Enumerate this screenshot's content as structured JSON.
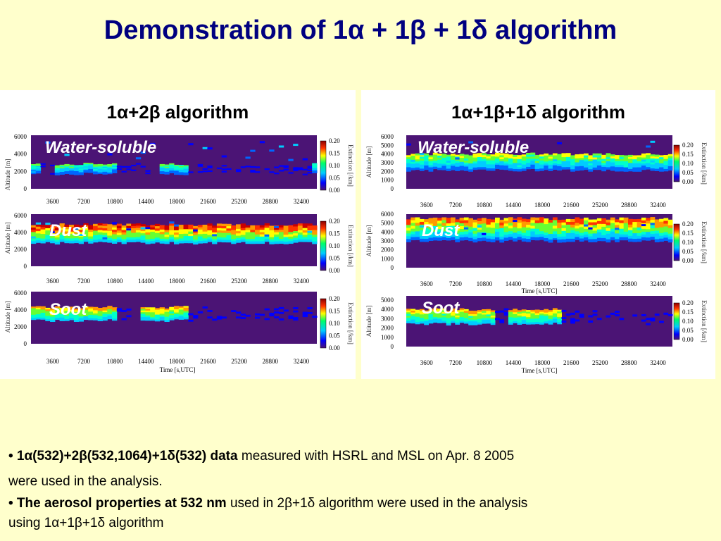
{
  "title": "Demonstration of 1α + 1β + 1δ algorithm",
  "left_panel": {
    "title": "1α+2β algorithm",
    "plots": [
      {
        "label": "Water-soluble",
        "ylabel": "Altitude [m]",
        "yticks": [
          "6000",
          "4000",
          "2000",
          "0"
        ]
      },
      {
        "label": "Dust",
        "ylabel": "Altitude [m]",
        "yticks": [
          "6000",
          "4000",
          "2000",
          "0"
        ]
      },
      {
        "label": "Soot",
        "ylabel": "Altitude [m]",
        "yticks": [
          "6000",
          "4000",
          "2000",
          "0"
        ]
      }
    ],
    "xticks": [
      "3600",
      "7200",
      "10800",
      "14400",
      "18000",
      "21600",
      "25200",
      "28800",
      "32400"
    ],
    "xlabel": "Time [s,UTC]",
    "colorbar_label": "Extinction [/km]",
    "colorbar_ticks": [
      "0.20",
      "0.15",
      "0.10",
      "0.05",
      "0.00"
    ]
  },
  "right_panel": {
    "title": "1α+1β+1δ algorithm",
    "plots": [
      {
        "label": "Water-soluble",
        "ylabel": "Altitude [m]",
        "yticks": [
          "6000",
          "5000",
          "4000",
          "3000",
          "2000",
          "1000",
          "0"
        ]
      },
      {
        "label": "Dust",
        "ylabel": "Altitude [m]",
        "yticks": [
          "6000",
          "5000",
          "4000",
          "3000",
          "2000",
          "1000",
          "0"
        ]
      },
      {
        "label": "Soot",
        "ylabel": "Altitude [m]",
        "yticks": [
          "5000",
          "4000",
          "3000",
          "2000",
          "1000",
          "0"
        ]
      }
    ],
    "xticks": [
      "3600",
      "7200",
      "10800",
      "14400",
      "18000",
      "21600",
      "25200",
      "28800",
      "32400"
    ],
    "xlabel": "Time [s,UTC]",
    "colorbar_label": "Extinction [/km]",
    "colorbar_ticks": [
      "0.20",
      "0.15",
      "0.10",
      "0.05",
      "0.00"
    ]
  },
  "notes": {
    "line1_bold": "• 1α(532)+2β(532,1064)+1δ(532)  data",
    "line1_rest": " measured with HSRL and MSL on Apr. 8 2005",
    "line2": "were used in the analysis.",
    "line3_bold": "• The aerosol properties at 532 nm",
    "line3_rest": " used in 2β+1δ algorithm were used in the analysis",
    "line4": "using 1α+1β+1δ algorithm"
  },
  "colors": {
    "title": "#000080",
    "background": "#ffffcc",
    "plot_bg": "#4b1475"
  }
}
